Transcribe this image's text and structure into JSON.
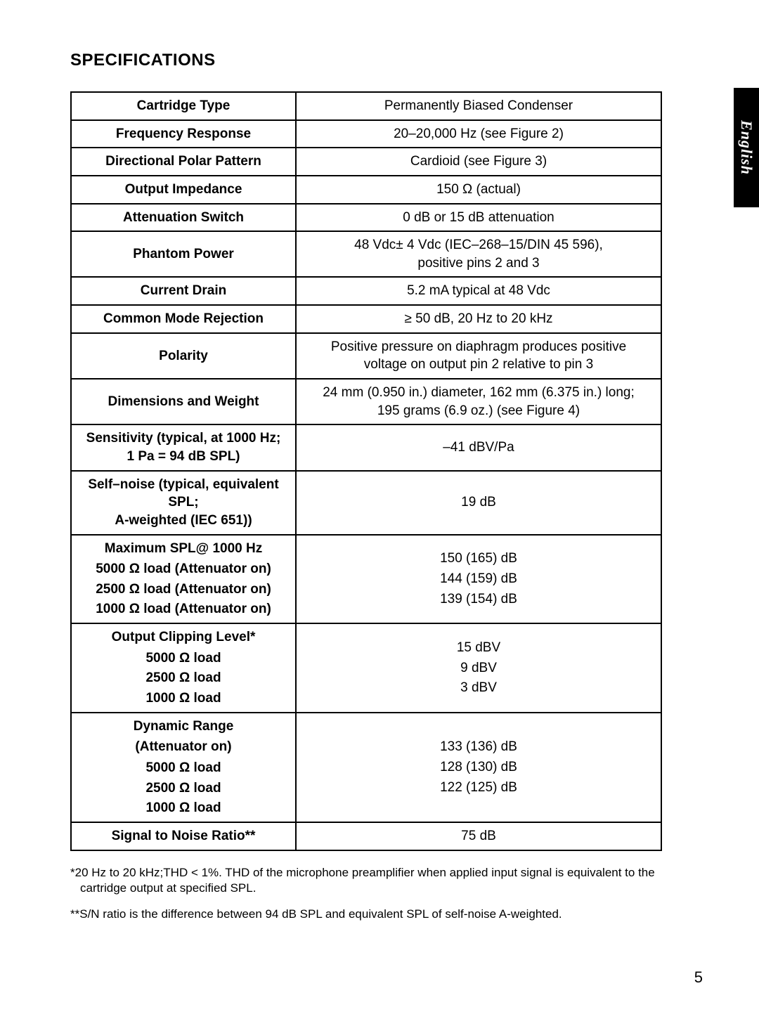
{
  "heading": "SPECIFICATIONS",
  "language_tab": "English",
  "page_number": "5",
  "table": {
    "columns": [
      "label",
      "value"
    ],
    "rows": [
      {
        "label": "Cartridge Type",
        "value": "Permanently Biased Condenser"
      },
      {
        "label": "Frequency Response",
        "value": "20–20,000 Hz (see Figure 2)"
      },
      {
        "label": "Directional Polar Pattern",
        "value": "Cardioid (see Figure 3)"
      },
      {
        "label": "Output Impedance",
        "value": "150 Ω (actual)"
      },
      {
        "label": "Attenuation Switch",
        "value": "0 dB or 15 dB attenuation"
      },
      {
        "label": "Phantom Power",
        "value_lines": [
          "48 Vdc± 4 Vdc (IEC–268–15/DIN 45 596),",
          "positive pins 2 and 3"
        ]
      },
      {
        "label": "Current Drain",
        "value": "5.2 mA typical at 48 Vdc"
      },
      {
        "label": "Common Mode Rejection",
        "value": "≥ 50 dB, 20 Hz to 20 kHz"
      },
      {
        "label": "Polarity",
        "value_lines": [
          "Positive pressure on diaphragm produces positive",
          "voltage on output pin 2 relative to pin 3"
        ]
      },
      {
        "label": "Dimensions and Weight",
        "value_lines": [
          "24 mm (0.950 in.) diameter, 162 mm (6.375 in.) long;",
          "195 grams (6.9 oz.) (see Figure 4)"
        ]
      },
      {
        "label_lines": [
          "Sensitivity (typical, at 1000 Hz;",
          "1 Pa = 94 dB SPL)"
        ],
        "value": "–41 dBV/Pa"
      },
      {
        "label_lines": [
          "Self–noise (typical, equivalent SPL;",
          "A-weighted (IEC 651))"
        ],
        "value": "19 dB"
      },
      {
        "group": true,
        "header": "Maximum SPL@ 1000 Hz",
        "sub_labels": [
          "5000 Ω load (Attenuator on)",
          "2500 Ω load (Attenuator on)",
          "1000 Ω load (Attenuator on)"
        ],
        "value_lines": [
          "150 (165) dB",
          "144 (159) dB",
          "139 (154) dB"
        ]
      },
      {
        "group": true,
        "header": "Output Clipping Level*",
        "sub_labels": [
          "5000 Ω load",
          "2500 Ω load",
          "1000 Ω load"
        ],
        "value_lines": [
          "15 dBV",
          "9 dBV",
          "3 dBV"
        ]
      },
      {
        "group": true,
        "header_lines": [
          "Dynamic Range",
          "(Attenuator on)"
        ],
        "sub_labels": [
          "5000 Ω load",
          "2500 Ω load",
          "1000 Ω load"
        ],
        "value_lines": [
          "133 (136) dB",
          "128 (130) dB",
          "122 (125) dB"
        ]
      },
      {
        "label": "Signal to Noise Ratio**",
        "value": "75 dB"
      }
    ]
  },
  "footnotes": [
    "*20 Hz to 20 kHz;THD < 1%.  THD of the microphone preamplifier when applied input signal is equivalent to the cartridge output at specified SPL.",
    "**S/N ratio is the difference between 94 dB SPL and equivalent SPL of self-noise A-weighted."
  ]
}
